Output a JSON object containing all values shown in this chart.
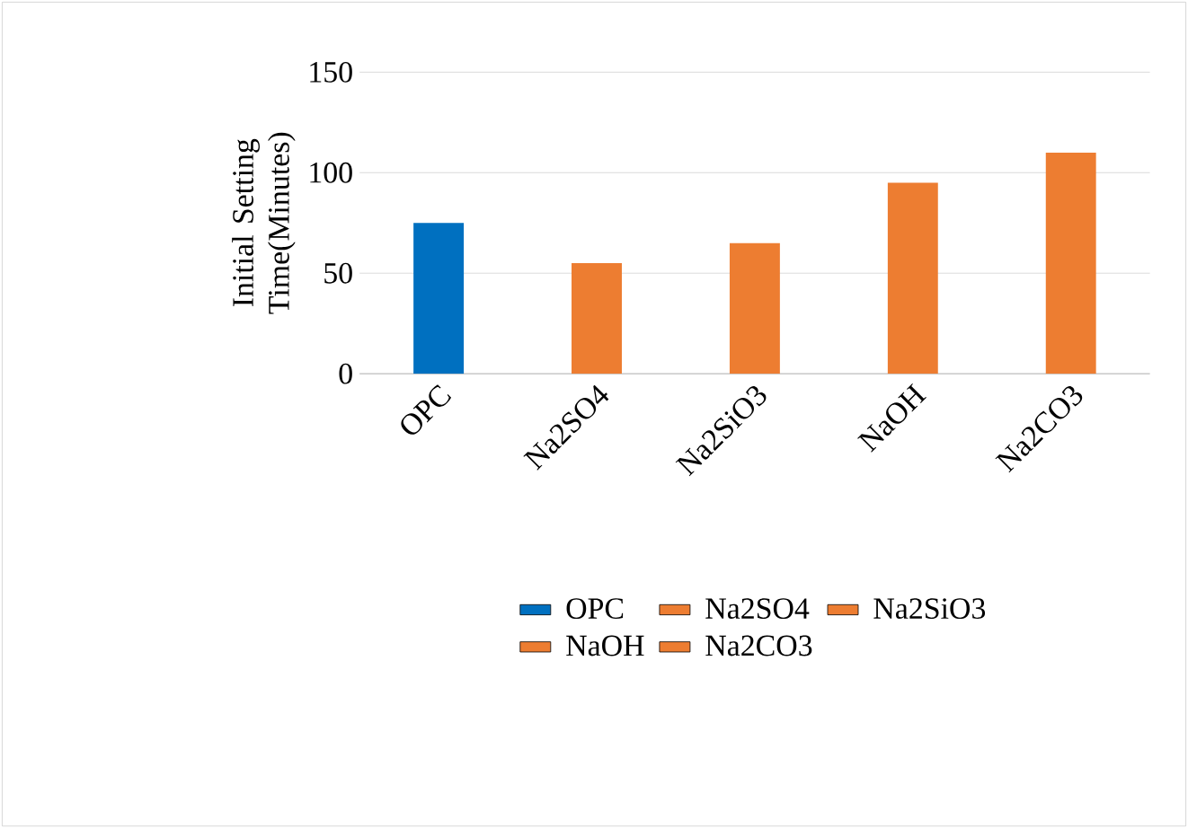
{
  "chart_data": {
    "type": "bar",
    "ylabel": "Initial Setting Time(Minutes)",
    "categories": [
      "OPC",
      "Na2SO4",
      "Na2SiO3",
      "NaOH",
      "Na2CO3"
    ],
    "series": [
      {
        "name": "OPC",
        "color": "#0070c0",
        "values": [
          75,
          null,
          null,
          null,
          null
        ]
      },
      {
        "name": "Na2SO4",
        "color": "#ed7d31",
        "values": [
          null,
          55,
          null,
          null,
          null
        ]
      },
      {
        "name": "Na2SiO3",
        "color": "#ed7d31",
        "values": [
          null,
          null,
          65,
          null,
          null
        ]
      },
      {
        "name": "NaOH",
        "color": "#ed7d31",
        "values": [
          null,
          null,
          null,
          95,
          null
        ]
      },
      {
        "name": "Na2CO3",
        "color": "#ed7d31",
        "values": [
          null,
          null,
          null,
          null,
          110
        ]
      }
    ],
    "ylim": [
      0,
      150
    ],
    "yticks": [
      0,
      50,
      100,
      150
    ],
    "grid": "y",
    "legend": "bottom"
  }
}
